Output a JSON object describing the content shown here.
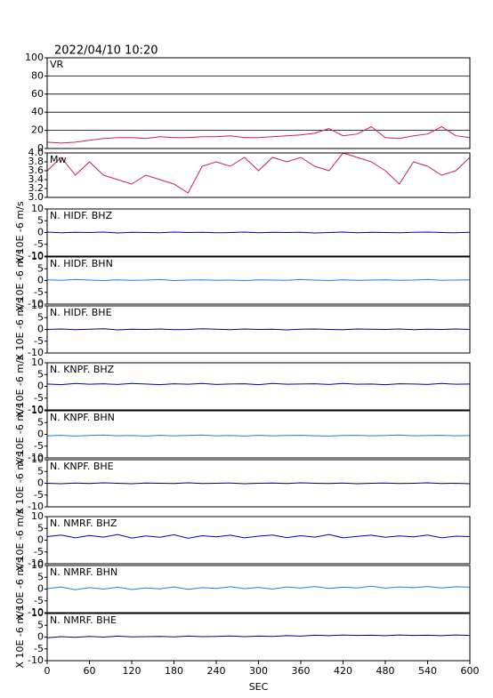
{
  "chart_data": [
    {
      "type": "line",
      "title": "2022/04/10 10:20",
      "label": "VR",
      "x": [
        0,
        20,
        40,
        60,
        80,
        100,
        120,
        140,
        160,
        180,
        200,
        220,
        240,
        260,
        280,
        300,
        320,
        340,
        360,
        380,
        400,
        420,
        440,
        460,
        480,
        500,
        520,
        540,
        560,
        580,
        600
      ],
      "values": [
        7,
        6,
        7,
        9,
        11,
        12,
        12,
        11,
        13,
        12,
        12,
        13,
        13,
        14,
        12,
        12,
        13,
        14,
        15,
        17,
        22,
        14,
        16,
        24,
        12,
        11,
        14,
        16,
        24,
        14,
        12
      ],
      "color": "#d0204a",
      "xlim": [
        0,
        600
      ],
      "ylim": [
        0,
        100
      ],
      "yticks": [
        0,
        20,
        40,
        60,
        80,
        100
      ],
      "grid": true
    },
    {
      "type": "line",
      "label": "Mw",
      "x": [
        0,
        20,
        40,
        60,
        80,
        100,
        120,
        140,
        160,
        180,
        200,
        220,
        240,
        260,
        280,
        300,
        320,
        340,
        360,
        380,
        400,
        420,
        440,
        460,
        480,
        500,
        520,
        540,
        560,
        580,
        600
      ],
      "values": [
        3.6,
        3.9,
        3.5,
        3.8,
        3.5,
        3.4,
        3.3,
        3.5,
        3.4,
        3.3,
        3.1,
        3.7,
        3.8,
        3.7,
        3.9,
        3.6,
        3.9,
        3.8,
        3.9,
        3.7,
        3.6,
        4.0,
        3.9,
        3.8,
        3.6,
        3.3,
        3.8,
        3.7,
        3.5,
        3.6,
        3.9
      ],
      "color": "#d0204a",
      "xlim": [
        0,
        600
      ],
      "ylim": [
        3,
        4
      ],
      "yticks": [
        {
          "value": 3,
          "label": "3.0"
        },
        3.2,
        3.4,
        3.6,
        3.8,
        {
          "value": 4,
          "label": "4.0"
        }
      ],
      "grid": false
    },
    {
      "type": "line",
      "label": "N. HIDF. BHZ",
      "ylabel": "X 10E -6 m/s",
      "x": [
        0,
        20,
        40,
        60,
        80,
        100,
        120,
        140,
        160,
        180,
        200,
        220,
        240,
        260,
        280,
        300,
        320,
        340,
        360,
        380,
        400,
        420,
        440,
        460,
        480,
        500,
        520,
        540,
        560,
        580,
        600
      ],
      "values": [
        0.2,
        -0.1,
        0.1,
        0,
        0.2,
        -0.2,
        0.1,
        0,
        -0.1,
        0.2,
        0,
        0.1,
        -0.1,
        0,
        0.2,
        -0.1,
        0.1,
        0,
        0.1,
        -0.2,
        0,
        0.2,
        -0.1,
        0.1,
        0,
        -0.1,
        0.1,
        0.2,
        0,
        -0.1,
        0.1
      ],
      "color": "#0000c0",
      "xlim": [
        0,
        600
      ],
      "ylim": [
        -10,
        10
      ],
      "yticks": [
        -10,
        -5,
        0,
        5,
        10
      ],
      "grid": false
    },
    {
      "type": "line",
      "label": "N. HIDF. BHN",
      "ylabel": "X 10E -6 m/s",
      "x": [
        0,
        20,
        40,
        60,
        80,
        100,
        120,
        140,
        160,
        180,
        200,
        220,
        240,
        260,
        280,
        300,
        320,
        340,
        360,
        380,
        400,
        420,
        440,
        460,
        480,
        500,
        520,
        540,
        560,
        580,
        600
      ],
      "values": [
        0.3,
        0.1,
        0.4,
        0.2,
        0,
        0.3,
        0.1,
        0.2,
        0.4,
        0,
        0.2,
        0.3,
        0.1,
        0.2,
        0,
        0.3,
        0.2,
        0.1,
        0.4,
        0.2,
        0,
        0.3,
        0.1,
        0.2,
        0.3,
        0.1,
        0.2,
        0.4,
        0.1,
        0.2,
        0.3
      ],
      "color": "#2080e0",
      "xlim": [
        0,
        600
      ],
      "ylim": [
        -10,
        10
      ],
      "yticks": [
        -10,
        -5,
        0,
        5,
        10
      ],
      "grid": false
    },
    {
      "type": "line",
      "label": "N. HIDF. BHE",
      "ylabel": "X 10E -6 m/s",
      "x": [
        0,
        20,
        40,
        60,
        80,
        100,
        120,
        140,
        160,
        180,
        200,
        220,
        240,
        260,
        280,
        300,
        320,
        340,
        360,
        380,
        400,
        420,
        440,
        460,
        480,
        500,
        520,
        540,
        560,
        580,
        600
      ],
      "values": [
        0,
        0.2,
        -0.1,
        0.1,
        0.3,
        -0.2,
        0.1,
        0,
        0.2,
        -0.1,
        0,
        0.3,
        0.1,
        -0.1,
        0.2,
        0,
        0.1,
        -0.2,
        0.1,
        0.2,
        0,
        -0.1,
        0.2,
        0.1,
        0,
        0.2,
        -0.1,
        0.1,
        0,
        0.2,
        0
      ],
      "color": "#000080",
      "xlim": [
        0,
        600
      ],
      "ylim": [
        -10,
        10
      ],
      "yticks": [
        -10,
        -5,
        0,
        5,
        10
      ],
      "grid": false
    },
    {
      "type": "line",
      "label": "N. KNPF. BHZ",
      "ylabel": "X 10E -6 m/s",
      "x": [
        0,
        20,
        40,
        60,
        80,
        100,
        120,
        140,
        160,
        180,
        200,
        220,
        240,
        260,
        280,
        300,
        320,
        340,
        360,
        380,
        400,
        420,
        440,
        460,
        480,
        500,
        520,
        540,
        560,
        580,
        600
      ],
      "values": [
        1,
        0.7,
        1.2,
        0.9,
        1.1,
        0.8,
        1.2,
        1,
        0.7,
        1.1,
        0.9,
        1.2,
        0.8,
        1,
        1.1,
        0.7,
        1.2,
        0.9,
        1,
        1.1,
        0.8,
        1.2,
        0.9,
        1,
        0.7,
        1.1,
        1,
        0.8,
        1.2,
        0.9,
        1
      ],
      "color": "#0000c0",
      "xlim": [
        0,
        600
      ],
      "ylim": [
        -10,
        10
      ],
      "yticks": [
        -10,
        -5,
        0,
        5,
        10
      ],
      "grid": false
    },
    {
      "type": "line",
      "label": "N. KNPF. BHN",
      "ylabel": "X 10E -6 m/s",
      "x": [
        0,
        20,
        40,
        60,
        80,
        100,
        120,
        140,
        160,
        180,
        200,
        220,
        240,
        260,
        280,
        300,
        320,
        340,
        360,
        380,
        400,
        420,
        440,
        460,
        480,
        500,
        520,
        540,
        560,
        580,
        600
      ],
      "values": [
        -0.6,
        -0.4,
        -0.7,
        -0.5,
        -0.3,
        -0.6,
        -0.5,
        -0.7,
        -0.4,
        -0.6,
        -0.5,
        -0.3,
        -0.6,
        -0.5,
        -0.7,
        -0.4,
        -0.6,
        -0.5,
        -0.4,
        -0.6,
        -0.7,
        -0.5,
        -0.4,
        -0.6,
        -0.5,
        -0.3,
        -0.6,
        -0.5,
        -0.4,
        -0.6,
        -0.5
      ],
      "color": "#2080e0",
      "xlim": [
        0,
        600
      ],
      "ylim": [
        -10,
        10
      ],
      "yticks": [
        -10,
        -5,
        0,
        5,
        10
      ],
      "grid": false
    },
    {
      "type": "line",
      "label": "N. KNPF. BHE",
      "ylabel": "X 10E -6 m/s",
      "x": [
        0,
        20,
        40,
        60,
        80,
        100,
        120,
        140,
        160,
        180,
        200,
        220,
        240,
        260,
        280,
        300,
        320,
        340,
        360,
        380,
        400,
        420,
        440,
        460,
        480,
        500,
        520,
        540,
        560,
        580,
        600
      ],
      "values": [
        0,
        -0.2,
        0.1,
        -0.1,
        0.2,
        0,
        -0.2,
        0.1,
        0,
        -0.1,
        0.2,
        -0.1,
        0,
        0.1,
        -0.2,
        0,
        0.1,
        -0.1,
        0.2,
        0,
        -0.1,
        0.1,
        -0.2,
        0,
        0.1,
        -0.1,
        0,
        0.2,
        -0.1,
        0,
        -0.2
      ],
      "color": "#000080",
      "xlim": [
        0,
        600
      ],
      "ylim": [
        -10,
        10
      ],
      "yticks": [
        -10,
        -5,
        0,
        5,
        10
      ],
      "grid": false
    },
    {
      "type": "line",
      "label": "N. NMRF. BHZ",
      "ylabel": "X 10E -6 m/s",
      "x": [
        0,
        20,
        40,
        60,
        80,
        100,
        120,
        140,
        160,
        180,
        200,
        220,
        240,
        260,
        280,
        300,
        320,
        340,
        360,
        380,
        400,
        420,
        440,
        460,
        480,
        500,
        520,
        540,
        560,
        580,
        600
      ],
      "values": [
        1.5,
        2.2,
        1,
        2,
        1.3,
        2.4,
        0.9,
        1.8,
        1.2,
        2.3,
        0.8,
        1.9,
        1.4,
        2.1,
        1,
        1.7,
        2.2,
        1.1,
        1.9,
        1.3,
        2.4,
        1,
        1.6,
        2.1,
        1.2,
        1.8,
        1.4,
        2.2,
        1,
        1.7,
        1.5
      ],
      "color": "#0000c0",
      "xlim": [
        0,
        600
      ],
      "ylim": [
        -10,
        10
      ],
      "yticks": [
        -10,
        -5,
        0,
        5,
        10
      ],
      "grid": false
    },
    {
      "type": "line",
      "label": "N. NMRF. BHN",
      "ylabel": "X 10E -6 m/s",
      "x": [
        0,
        20,
        40,
        60,
        80,
        100,
        120,
        140,
        160,
        180,
        200,
        220,
        240,
        260,
        280,
        300,
        320,
        340,
        360,
        380,
        400,
        420,
        440,
        460,
        480,
        500,
        520,
        540,
        560,
        580,
        600
      ],
      "values": [
        0.2,
        0.9,
        -0.3,
        0.6,
        0,
        0.8,
        -0.2,
        0.5,
        0.1,
        0.9,
        -0.1,
        0.6,
        0.3,
        1,
        0.2,
        0.7,
        0,
        0.9,
        0.4,
        1.1,
        0.3,
        0.8,
        0.5,
        1.2,
        0.4,
        0.9,
        0.6,
        1.1,
        0.5,
        1,
        0.8
      ],
      "color": "#2080e0",
      "xlim": [
        0,
        600
      ],
      "ylim": [
        -10,
        10
      ],
      "yticks": [
        -10,
        -5,
        0,
        5,
        10
      ],
      "grid": false
    },
    {
      "type": "line",
      "label": "N. NMRF. BHE",
      "ylabel": "X 10E -6 m/s",
      "x": [
        0,
        20,
        40,
        60,
        80,
        100,
        120,
        140,
        160,
        180,
        200,
        220,
        240,
        260,
        280,
        300,
        320,
        340,
        360,
        380,
        400,
        420,
        440,
        460,
        480,
        500,
        520,
        540,
        560,
        580,
        600
      ],
      "values": [
        -0.3,
        0.2,
        -0.1,
        0.3,
        0,
        0.4,
        0.1,
        0.2,
        0.3,
        0.1,
        0.4,
        0.2,
        0.3,
        0.5,
        0.2,
        0.4,
        0.3,
        0.6,
        0.4,
        0.8,
        0.6,
        0.9,
        0.7,
        0.8,
        0.6,
        0.9,
        0.7,
        0.8,
        0.6,
        0.9,
        0.7
      ],
      "color": "#000080",
      "xlim": [
        0,
        600
      ],
      "ylim": [
        -10,
        10
      ],
      "yticks": [
        -10,
        -5,
        0,
        5,
        10
      ],
      "grid": false,
      "xticks": [
        0,
        60,
        120,
        180,
        240,
        300,
        360,
        420,
        480,
        540,
        600
      ],
      "xlabel": "SEC"
    }
  ]
}
